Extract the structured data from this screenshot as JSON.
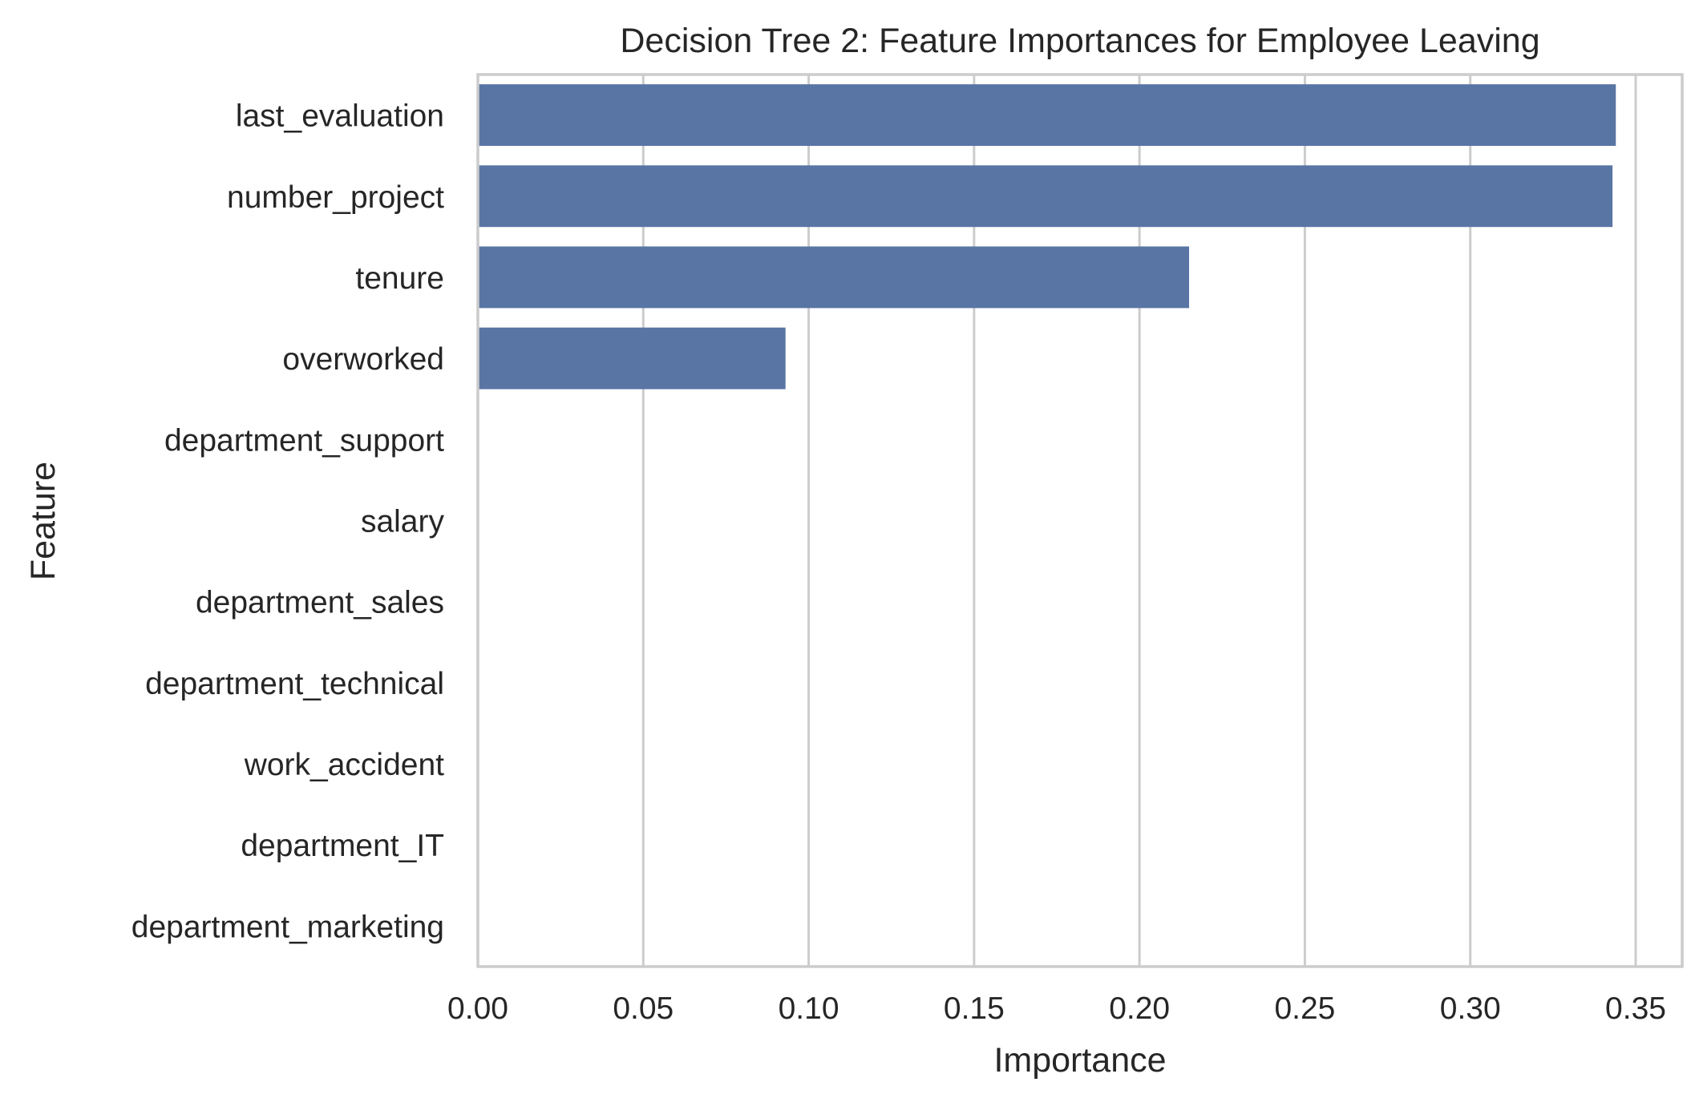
{
  "chart_data": {
    "type": "bar",
    "orientation": "horizontal",
    "title": "Decision Tree 2: Feature Importances for Employee Leaving",
    "xlabel": "Importance",
    "ylabel": "Feature",
    "categories": [
      "last_evaluation",
      "number_project",
      "tenure",
      "overworked",
      "department_support",
      "salary",
      "department_sales",
      "department_technical",
      "work_accident",
      "department_IT",
      "department_marketing"
    ],
    "values": [
      0.344,
      0.343,
      0.215,
      0.093,
      0.0,
      0.0,
      0.0,
      0.0,
      0.0,
      0.0,
      0.0
    ],
    "xlim": [
      0,
      0.36
    ],
    "xticks": [
      "0.00",
      "0.05",
      "0.10",
      "0.15",
      "0.20",
      "0.25",
      "0.30",
      "0.35"
    ],
    "grid": "vertical",
    "bar_color": "#5975a4",
    "grid_color": "#cccccc"
  }
}
